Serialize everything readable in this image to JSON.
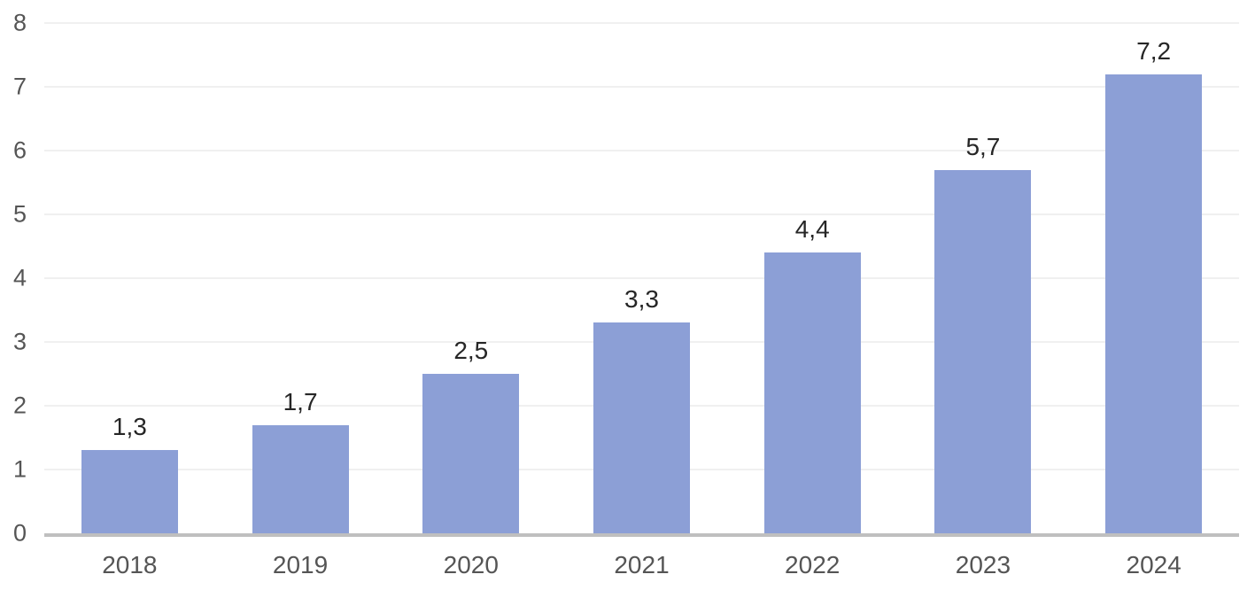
{
  "chart_data": {
    "type": "bar",
    "categories": [
      "2018",
      "2019",
      "2020",
      "2021",
      "2022",
      "2023",
      "2024"
    ],
    "values": [
      1.3,
      1.7,
      2.5,
      3.3,
      4.4,
      5.7,
      7.2
    ],
    "value_labels": [
      "1,3",
      "1,7",
      "2,5",
      "3,3",
      "4,4",
      "5,7",
      "7,2"
    ],
    "title": "",
    "xlabel": "",
    "ylabel": "",
    "ylim": [
      0,
      8
    ],
    "yticks": [
      0,
      1,
      2,
      3,
      4,
      5,
      6,
      7,
      8
    ],
    "grid": "horizontal-only",
    "legend": "none",
    "colors": {
      "bar": "#8C9FD6",
      "axis_line": "#BFBFBF",
      "gridline": "#F0F0F0",
      "tick_label": "#555555",
      "data_label": "#262626"
    }
  }
}
